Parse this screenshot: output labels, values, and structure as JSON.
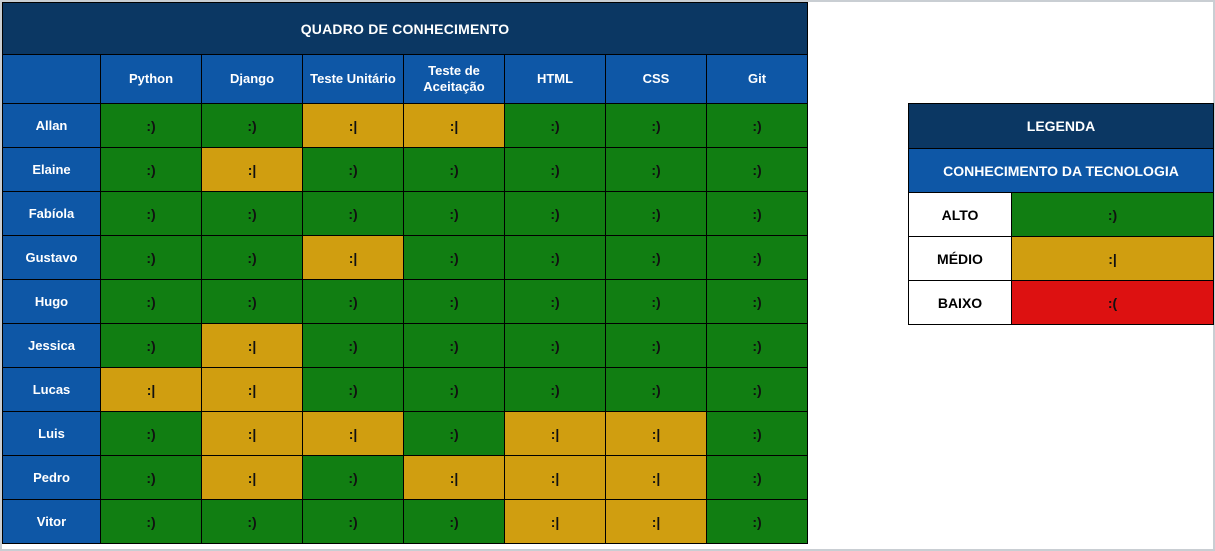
{
  "chart_data": {
    "type": "heatmap",
    "title": "QUADRO DE CONHECIMENTO",
    "columns": [
      "Python",
      "Django",
      "Teste Unitário",
      "Teste de Aceitação",
      "HTML",
      "CSS",
      "Git"
    ],
    "rows": [
      "Allan",
      "Elaine",
      "Fabíola",
      "Gustavo",
      "Hugo",
      "Jessica",
      "Lucas",
      "Luis",
      "Pedro",
      "Vitor"
    ],
    "values": [
      [
        ":)",
        ":)",
        ":|",
        ":|",
        ":)",
        ":)",
        ":)"
      ],
      [
        ":)",
        ":|",
        ":)",
        ":)",
        ":)",
        ":)",
        ":)"
      ],
      [
        ":)",
        ":)",
        ":)",
        ":)",
        ":)",
        ":)",
        ":)"
      ],
      [
        ":)",
        ":)",
        ":|",
        ":)",
        ":)",
        ":)",
        ":)"
      ],
      [
        ":)",
        ":)",
        ":)",
        ":)",
        ":)",
        ":)",
        ":)"
      ],
      [
        ":)",
        ":|",
        ":)",
        ":)",
        ":)",
        ":)",
        ":)"
      ],
      [
        ":|",
        ":|",
        ":)",
        ":)",
        ":)",
        ":)",
        ":)"
      ],
      [
        ":)",
        ":|",
        ":|",
        ":)",
        ":|",
        ":|",
        ":)"
      ],
      [
        ":)",
        ":|",
        ":)",
        ":|",
        ":|",
        ":|",
        ":)"
      ],
      [
        ":)",
        ":)",
        ":)",
        ":)",
        ":|",
        ":|",
        ":)"
      ]
    ],
    "value_meaning": {
      ":)": "ALTO",
      ":|": "MÉDIO",
      ":(": "BAIXO"
    },
    "legend_position": "right"
  },
  "legend": {
    "title": "LEGENDA",
    "subtitle": "CONHECIMENTO DA TECNOLOGIA",
    "items": [
      {
        "label": "ALTO",
        "emoticon": ":)",
        "level": "high"
      },
      {
        "label": "MÉDIO",
        "emoticon": ":|",
        "level": "medium"
      },
      {
        "label": "BAIXO",
        "emoticon": ":(",
        "level": "low"
      }
    ]
  },
  "colors": {
    "navy": "#0B3763",
    "blue": "#0E57A6",
    "high": "#117E12",
    "medium": "#D09E10",
    "low": "#DD1111"
  }
}
